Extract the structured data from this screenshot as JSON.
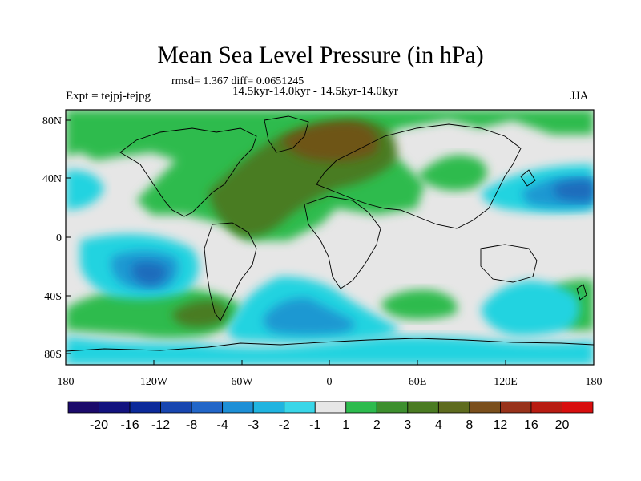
{
  "header": {
    "title": "Mean Sea Level Pressure (in hPa)",
    "stats": "rmsd= 1.367 diff= 0.0651245",
    "experiment": "Expt = tejpj-tejpg",
    "period": "14.5kyr-14.0kyr - 14.5kyr-14.0kyr",
    "season": "JJA"
  },
  "axes": {
    "y_ticks": [
      "80N",
      "40N",
      "0",
      "40S",
      "80S"
    ],
    "x_ticks": [
      "180",
      "120W",
      "60W",
      "0",
      "60E",
      "120E",
      "180"
    ]
  },
  "colorbar": {
    "labels": [
      "-20",
      "-16",
      "-12",
      "-8",
      "-4",
      "-3",
      "-2",
      "-1",
      "1",
      "2",
      "3",
      "4",
      "8",
      "12",
      "16",
      "20"
    ],
    "colors": [
      "#1b0a6b",
      "#13137f",
      "#0c2a9a",
      "#1846b0",
      "#2266c8",
      "#1d8fd6",
      "#20b4e0",
      "#39d6e8",
      "#e6e6e6",
      "#2dbb4e",
      "#3d8f2e",
      "#4a7b22",
      "#5e6b1e",
      "#7a4f1c",
      "#98321a",
      "#b81c12",
      "#d80e0e"
    ]
  },
  "map": {
    "colors": {
      "neutral": "#e6e6e6",
      "green": "#2dbb4e",
      "olive": "#4a7b22",
      "brown": "#6e5418",
      "cyan": "#22d3e0",
      "blue": "#1f98d2",
      "deepblue": "#1a6cbc"
    }
  }
}
